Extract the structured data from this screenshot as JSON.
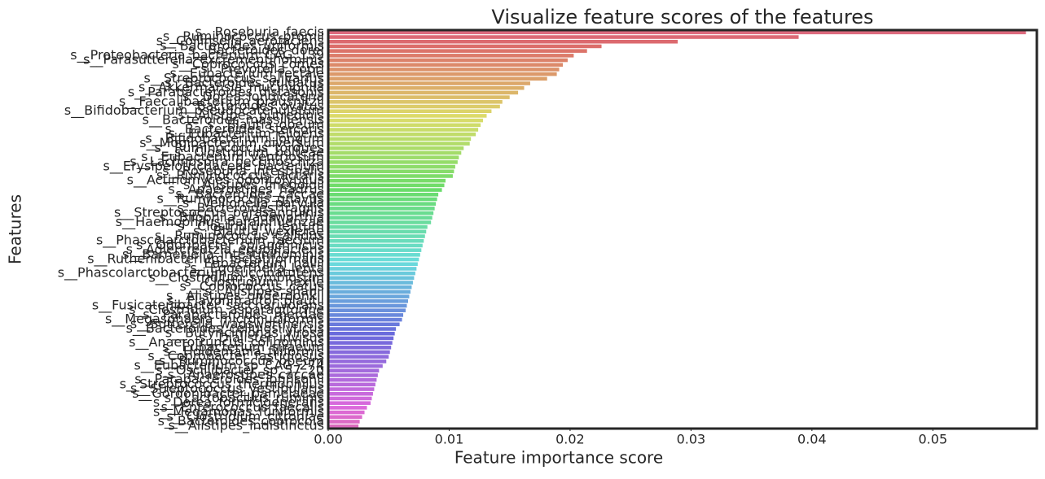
{
  "chart_data": {
    "type": "barh",
    "title": "Visualize feature scores of the features",
    "xlabel": "Feature importance score",
    "ylabel": "Features",
    "categories": [
      "s__Roseburia_faecis",
      "s__Ruminococcus_bromii",
      "s__Collinsella_aerofaciens",
      "s__Bacteroides_uniformis",
      "s__Bacteroides_dorei",
      "s__Proteobacteria_bacterium_CAG_139",
      "s__Parasutterella_excrementihominis",
      "s__Coprococcus_comes",
      "s__Prevotella_copri",
      "s__Eubacterium_rectale",
      "s__Streptococcus_salivarius",
      "s__Bacteroides_vulgatus",
      "s__Akkermansia_muciniphila",
      "s__Parabacteroides_distasonis",
      "s__Dorea_longicatena",
      "s__Faecalibacterium_prausnitzii",
      "s__Bacteroides_ovatus",
      "s__Bifidobacterium_pseudocatenulatum",
      "s__Alistipes_putredinis",
      "s__Bacteroides_massiliensis",
      "s__Blautia_obeum",
      "s__Bacteroides_stercoris",
      "s__Eubacterium_eligens",
      "s__Bifidobacterium_longum",
      "s__Mogibacterium_diversum",
      "s__Ruminococcus_torques",
      "s__Clostridium_bolteae",
      "s__Eubacterium_ventriosum",
      "s__Lachnospira_pectinoschiza",
      "s__Erysipelotrichaceae_bacterium",
      "s__Roseburia_intestinalis",
      "s__Ruminococcus_lactaris",
      "s__Actinomyces_odontolyticus",
      "s__Alistipes_finegoldii",
      "s__Anaerostipes_hadrus",
      "s__Bacteroides_caccae",
      "s__Ruminococcus_gnavus",
      "s__Veillonella_parvula",
      "s__Bacteroides_fragilis",
      "s__Streptococcus_parasanguinis",
      "s__Bilophila_wadsworthia",
      "s__Haemophilus_parainfluenzae",
      "s__Clostridium_leptum",
      "s__Blautia_wexlerae",
      "s__Ruminococcus_callidus",
      "s__Phascolarctobacterium_faecium",
      "s__Odoribacter_splanchnicus",
      "s__Adlercreutzia_equolifaciens",
      "s__Barnesiella_intestinihominis",
      "s__Ruthenibacterium_lactatiformans",
      "s__Eubacterium_hallii",
      "s__Eggerthella_lenta",
      "s__Phascolarctobacterium_succinatutens",
      "s__Clostridium_symbiosum",
      "s__Clostridium_nexile",
      "s__Coprococcus_catus",
      "s__Alistipes_shahii",
      "s__Alistipes_onderdonkii",
      "s__Flavonifractor_plautii",
      "s__Fusicatenibacter_saccharivorans",
      "s__Clostridium_asparagiforme",
      "s__Parabacteroides_merdae",
      "s__Megasphaera_micronuciformis",
      "s__Sutterella_wadsworthensis",
      "s__Bacteroides_cellulosilyticus",
      "s__Butyricimonas_virosa",
      "s__Dialister_invisus",
      "s__Anaerotruncus_colihominis",
      "s__Eubacterium_siraeum",
      "s__Holdemania_filiformis",
      "s__Coprobacter_fastidiosus",
      "s__Ruminococcus_obeum",
      "s__Eubacterium_sp_CAG_274",
      "s__Oscillibacter_sp_57_20",
      "s__Anaerostipes_caccae",
      "s__Parabacteroides_johnsonii",
      "s__Streptococcus_thermophilus",
      "s__Streptococcus_vestibularis",
      "s__Gordonibacter_pamelaeae",
      "s__Lactobacillus_ruminis",
      "s__Dorea_formicigenerans",
      "s__Enterococcus_faecalis",
      "s__Megamonas_funiformis",
      "s__Clostridium_citroniae",
      "s__Bacteroides_coprocola",
      "s__Alistipes_indistinctus"
    ],
    "values": [
      0.0577,
      0.0389,
      0.0289,
      0.0226,
      0.0214,
      0.0203,
      0.0198,
      0.0194,
      0.0191,
      0.0189,
      0.0181,
      0.0167,
      0.0162,
      0.0157,
      0.015,
      0.0144,
      0.0142,
      0.0135,
      0.0131,
      0.0128,
      0.0126,
      0.0124,
      0.0122,
      0.0118,
      0.0117,
      0.0112,
      0.011,
      0.0108,
      0.0107,
      0.0105,
      0.0104,
      0.0103,
      0.0097,
      0.0096,
      0.0094,
      0.0091,
      0.009,
      0.0089,
      0.0088,
      0.0087,
      0.0086,
      0.0085,
      0.0082,
      0.0081,
      0.008,
      0.0079,
      0.0078,
      0.0077,
      0.0076,
      0.0075,
      0.0074,
      0.0073,
      0.0072,
      0.0071,
      0.007,
      0.0069,
      0.0068,
      0.0067,
      0.0066,
      0.0065,
      0.0064,
      0.0062,
      0.0061,
      0.0059,
      0.0056,
      0.0055,
      0.0054,
      0.0053,
      0.0052,
      0.0051,
      0.005,
      0.0048,
      0.0045,
      0.0042,
      0.0041,
      0.004,
      0.0039,
      0.0038,
      0.0037,
      0.0036,
      0.0035,
      0.0032,
      0.003,
      0.0028,
      0.0026,
      0.0025
    ],
    "palette": "husl",
    "xlim": [
      0,
      0.0586
    ],
    "xticks": [
      {
        "value": 0,
        "label": "0.00"
      },
      0.01,
      0.02,
      0.03,
      0.04,
      0.05
    ]
  }
}
